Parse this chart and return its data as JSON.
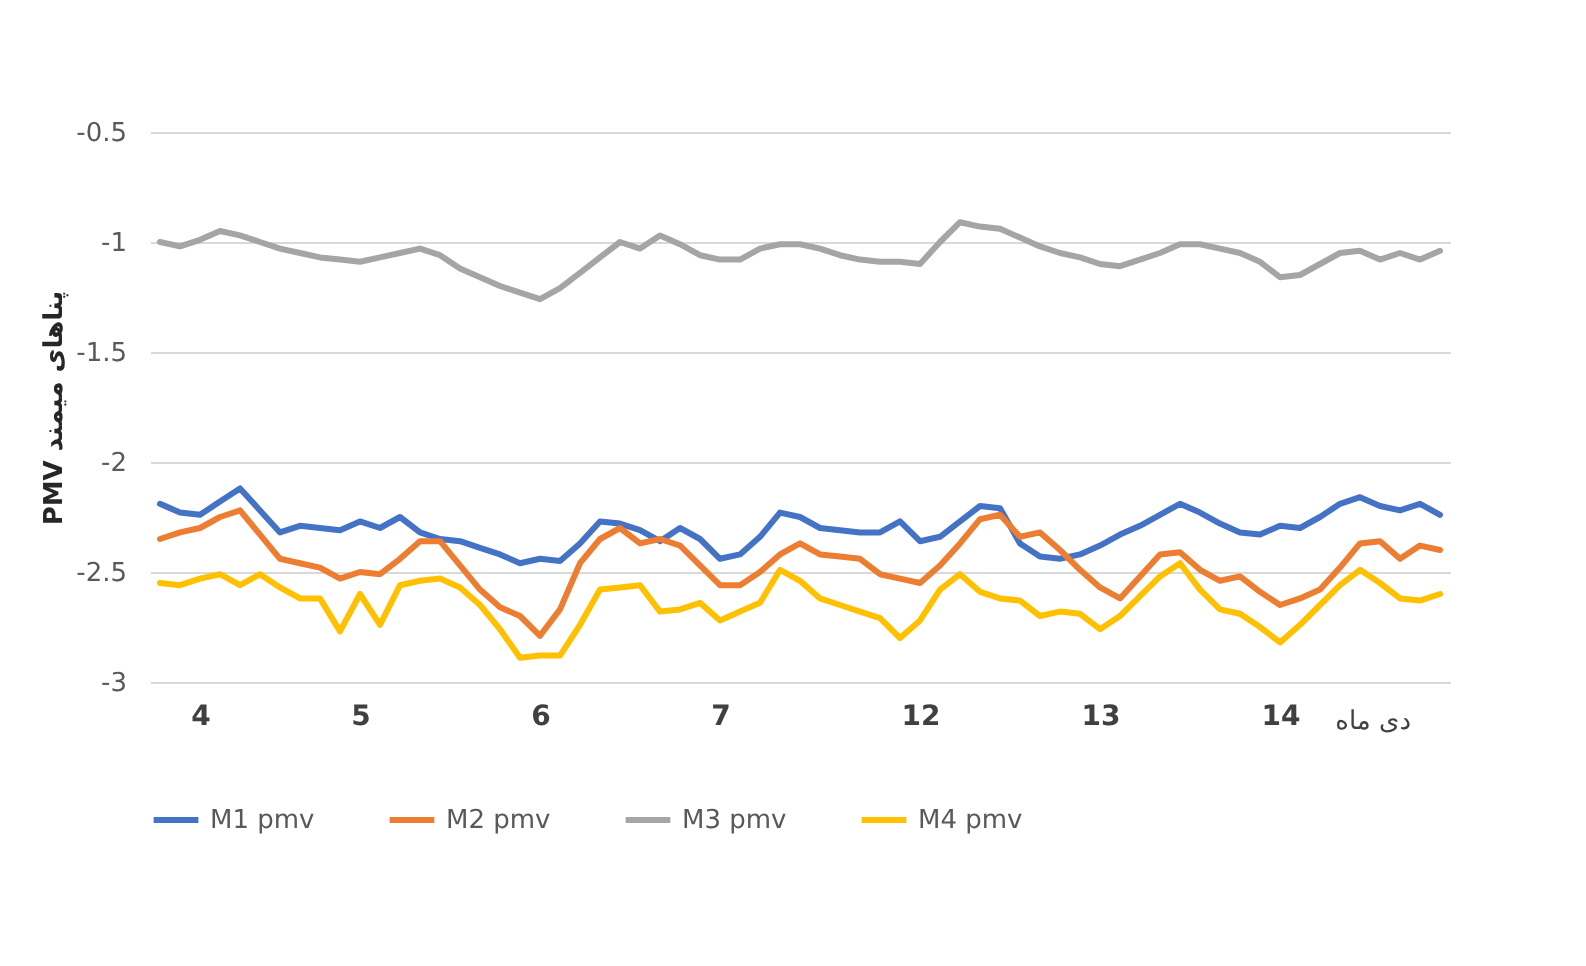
{
  "chart_data": {
    "type": "line",
    "ylabel": "PMV پناهای میمند",
    "xlabel": "دی ماه",
    "categories": [
      null,
      null,
      "4",
      null,
      null,
      null,
      null,
      null,
      null,
      null,
      "5",
      null,
      null,
      null,
      null,
      null,
      null,
      null,
      null,
      "6",
      null,
      null,
      null,
      null,
      null,
      null,
      null,
      null,
      "7",
      null,
      null,
      null,
      null,
      null,
      null,
      null,
      null,
      null,
      "12",
      null,
      null,
      null,
      null,
      null,
      null,
      null,
      null,
      "13",
      null,
      null,
      null,
      null,
      null,
      null,
      null,
      null,
      "14",
      null,
      null,
      null,
      null,
      null,
      null,
      null,
      null
    ],
    "ylim": [
      -3,
      -0.5
    ],
    "yticks": [
      {
        "value": -3,
        "label": "-3"
      },
      {
        "value": -2.5,
        "label": "-2.5"
      },
      {
        "value": -2,
        "label": "-2"
      },
      {
        "value": -1.5,
        "label": "-1.5"
      },
      {
        "value": -1,
        "label": "-1"
      },
      {
        "value": -0.5,
        "label": "-0.5"
      }
    ],
    "grid": "y",
    "legend": "bottom",
    "line_style": "solid",
    "marker": "none",
    "series": [
      {
        "name": "M1 pmv",
        "color": "#4472c4",
        "values": [
          -2.19,
          -2.23,
          -2.24,
          -2.18,
          -2.12,
          -2.22,
          -2.32,
          -2.29,
          -2.3,
          -2.31,
          -2.27,
          -2.3,
          -2.25,
          -2.32,
          -2.35,
          -2.36,
          -2.39,
          -2.42,
          -2.46,
          -2.44,
          -2.45,
          -2.37,
          -2.27,
          -2.28,
          -2.31,
          -2.36,
          -2.3,
          -2.35,
          -2.44,
          -2.42,
          -2.34,
          -2.23,
          -2.25,
          -2.3,
          -2.31,
          -2.32,
          -2.32,
          -2.27,
          -2.36,
          -2.34,
          -2.27,
          -2.2,
          -2.21,
          -2.37,
          -2.43,
          -2.44,
          -2.42,
          -2.38,
          -2.33,
          -2.29,
          -2.24,
          -2.19,
          -2.23,
          -2.28,
          -2.32,
          -2.33,
          -2.29,
          -2.3,
          -2.25,
          -2.19,
          -2.16,
          -2.2,
          -2.22,
          -2.19,
          -2.24
        ]
      },
      {
        "name": "M2 pmv",
        "color": "#ed7d31",
        "values": [
          -2.35,
          -2.32,
          -2.3,
          -2.25,
          -2.22,
          -2.33,
          -2.44,
          -2.46,
          -2.48,
          -2.53,
          -2.5,
          -2.51,
          -2.44,
          -2.36,
          -2.36,
          -2.47,
          -2.58,
          -2.66,
          -2.7,
          -2.79,
          -2.67,
          -2.46,
          -2.35,
          -2.3,
          -2.37,
          -2.35,
          -2.38,
          -2.47,
          -2.56,
          -2.56,
          -2.5,
          -2.42,
          -2.37,
          -2.42,
          -2.43,
          -2.44,
          -2.51,
          -2.53,
          -2.55,
          -2.47,
          -2.37,
          -2.26,
          -2.24,
          -2.34,
          -2.32,
          -2.4,
          -2.49,
          -2.57,
          -2.62,
          -2.52,
          -2.42,
          -2.41,
          -2.49,
          -2.54,
          -2.52,
          -2.59,
          -2.65,
          -2.62,
          -2.58,
          -2.48,
          -2.37,
          -2.36,
          -2.44,
          -2.38,
          -2.4
        ]
      },
      {
        "name": "M3 pmv",
        "color": "#a5a5a5",
        "values": [
          -1.0,
          -1.02,
          -0.99,
          -0.95,
          -0.97,
          -1.0,
          -1.03,
          -1.05,
          -1.07,
          -1.08,
          -1.09,
          -1.07,
          -1.05,
          -1.03,
          -1.06,
          -1.12,
          -1.16,
          -1.2,
          -1.23,
          -1.26,
          -1.21,
          -1.14,
          -1.07,
          -1.0,
          -1.03,
          -0.97,
          -1.01,
          -1.06,
          -1.08,
          -1.08,
          -1.03,
          -1.01,
          -1.01,
          -1.03,
          -1.06,
          -1.08,
          -1.09,
          -1.09,
          -1.1,
          -1.0,
          -0.91,
          -0.93,
          -0.94,
          -0.98,
          -1.02,
          -1.05,
          -1.07,
          -1.1,
          -1.11,
          -1.08,
          -1.05,
          -1.01,
          -1.01,
          -1.03,
          -1.05,
          -1.09,
          -1.16,
          -1.15,
          -1.1,
          -1.05,
          -1.04,
          -1.08,
          -1.05,
          -1.08,
          -1.04
        ]
      },
      {
        "name": "M4 pmv",
        "color": "#ffc000",
        "values": [
          -2.55,
          -2.56,
          -2.53,
          -2.51,
          -2.56,
          -2.51,
          -2.57,
          -2.62,
          -2.62,
          -2.77,
          -2.6,
          -2.74,
          -2.56,
          -2.54,
          -2.53,
          -2.57,
          -2.65,
          -2.76,
          -2.89,
          -2.88,
          -2.88,
          -2.74,
          -2.58,
          -2.57,
          -2.56,
          -2.68,
          -2.67,
          -2.64,
          -2.72,
          -2.68,
          -2.64,
          -2.49,
          -2.54,
          -2.62,
          -2.65,
          -2.68,
          -2.71,
          -2.8,
          -2.72,
          -2.58,
          -2.51,
          -2.59,
          -2.62,
          -2.63,
          -2.7,
          -2.68,
          -2.69,
          -2.76,
          -2.7,
          -2.61,
          -2.52,
          -2.46,
          -2.58,
          -2.67,
          -2.69,
          -2.75,
          -2.82,
          -2.74,
          -2.65,
          -2.56,
          -2.49,
          -2.55,
          -2.62,
          -2.63,
          -2.6
        ]
      }
    ]
  }
}
